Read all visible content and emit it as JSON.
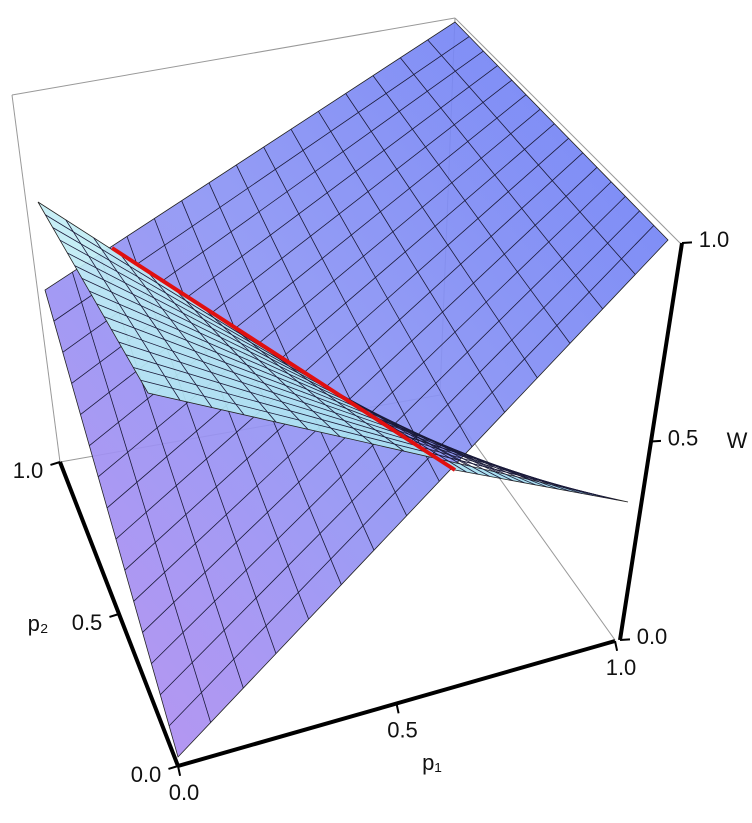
{
  "chart_data": {
    "type": "surface3d",
    "xlabel": "p₁",
    "ylabel": "p₂",
    "zlabel": "W",
    "xlim": [
      0,
      1
    ],
    "ylim": [
      0,
      1
    ],
    "zlim": [
      0,
      1
    ],
    "xticks": [
      {
        "value": 0,
        "label": "0.0"
      },
      {
        "value": 0.5,
        "label": "0.5"
      },
      {
        "value": 1,
        "label": "1.0"
      }
    ],
    "yticks": [
      {
        "value": 0,
        "label": "0.0"
      },
      {
        "value": 0.5,
        "label": "0.5"
      },
      {
        "value": 1,
        "label": "1.0"
      }
    ],
    "zticks": [
      {
        "value": 0,
        "label": "0.0"
      },
      {
        "value": 0.5,
        "label": "0.5"
      },
      {
        "value": 1,
        "label": "1.0"
      }
    ]
  }
}
